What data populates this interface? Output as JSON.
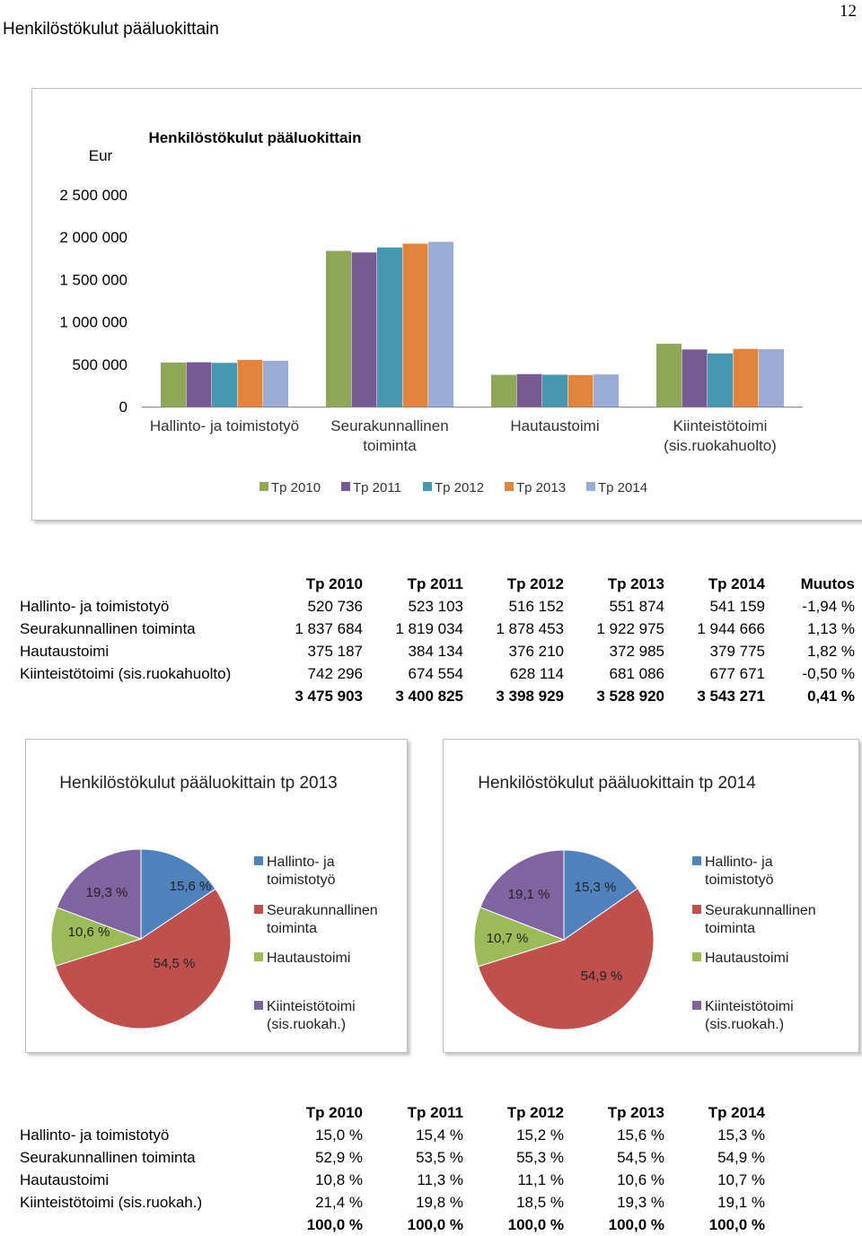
{
  "page": {
    "title": "Henkilöstökulut pääluokittain",
    "number": "12"
  },
  "chart_data": [
    {
      "type": "bar",
      "title": "Henkilöstökulut pääluokittain",
      "ylabel": "Eur",
      "ylim": [
        0,
        2500000
      ],
      "yticks": [
        "0",
        "500 000",
        "1 000 000",
        "1 500 000",
        "2 000 000",
        "2 500 000"
      ],
      "categories": [
        [
          "Hallinto- ja toimistotyö"
        ],
        [
          "Seurakunnallinen",
          "toiminta"
        ],
        [
          "Hautaustoimi"
        ],
        [
          "Kiinteistötoimi",
          "(sis.ruokahuolto)"
        ]
      ],
      "series": [
        {
          "name": "Tp 2010",
          "color": "#8ea855",
          "values": [
            520736,
            1837684,
            375187,
            742296
          ]
        },
        {
          "name": "Tp 2011",
          "color": "#765a91",
          "values": [
            523103,
            1819034,
            384134,
            674554
          ]
        },
        {
          "name": "Tp 2012",
          "color": "#4499b0",
          "values": [
            516152,
            1878453,
            376210,
            628114
          ]
        },
        {
          "name": "Tp 2013",
          "color": "#e3843e",
          "values": [
            551874,
            1922975,
            372985,
            681086
          ]
        },
        {
          "name": "Tp 2014",
          "color": "#98acd6",
          "values": [
            541159,
            1944666,
            379775,
            677671
          ]
        }
      ],
      "legend_position": "bottom",
      "grid": false
    },
    {
      "type": "pie",
      "title": "Henkilöstökulut pääluokittain tp 2013",
      "labels": [
        [
          "Hallinto- ja",
          "toimistotyö"
        ],
        [
          "Seurakunnallinen",
          "toiminta"
        ],
        [
          "Hautaustoimi"
        ],
        [
          "Kiinteistötoimi",
          "(sis.ruokah.)"
        ]
      ],
      "values": [
        15.6,
        54.5,
        10.6,
        19.3
      ],
      "value_labels": [
        "15,6 %",
        "54,5 %",
        "10,6 %",
        "19,3 %"
      ],
      "colors": [
        "#4f81bd",
        "#c0504d",
        "#9bbb59",
        "#8064a2"
      ],
      "legend_position": "right"
    },
    {
      "type": "pie",
      "title": "Henkilöstökulut pääluokittain tp 2014",
      "labels": [
        [
          "Hallinto- ja",
          "toimistotyö"
        ],
        [
          "Seurakunnallinen",
          "toiminta"
        ],
        [
          "Hautaustoimi"
        ],
        [
          "Kiinteistötoimi",
          "(sis.ruokah.)"
        ]
      ],
      "values": [
        15.3,
        54.9,
        10.7,
        19.1
      ],
      "value_labels": [
        "15,3 %",
        "54,9 %",
        "10,7 %",
        "19,1 %"
      ],
      "colors": [
        "#4f81bd",
        "#c0504d",
        "#9bbb59",
        "#8064a2"
      ],
      "legend_position": "right"
    },
    {
      "type": "table",
      "headers": [
        "",
        "Tp 2010",
        "Tp 2011",
        "Tp 2012",
        "Tp 2013",
        "Tp 2014",
        "Muutos"
      ],
      "rows": [
        [
          "Hallinto- ja toimistotyö",
          "520 736",
          "523 103",
          "516 152",
          "551 874",
          "541 159",
          "-1,94 %"
        ],
        [
          "Seurakunnallinen toiminta",
          "1 837 684",
          "1 819 034",
          "1 878 453",
          "1 922 975",
          "1 944 666",
          "1,13 %"
        ],
        [
          "Hautaustoimi",
          "375 187",
          "384 134",
          "376 210",
          "372 985",
          "379 775",
          "1,82 %"
        ],
        [
          "Kiinteistötoimi (sis.ruokahuolto)",
          "742 296",
          "674 554",
          "628 114",
          "681 086",
          "677 671",
          "-0,50 %"
        ]
      ],
      "total": [
        "",
        "3 475 903",
        "3 400 825",
        "3 398 929",
        "3 528 920",
        "3 543 271",
        "0,41 %"
      ]
    },
    {
      "type": "table",
      "headers": [
        "",
        "Tp 2010",
        "Tp 2011",
        "Tp 2012",
        "Tp 2013",
        "Tp 2014"
      ],
      "rows": [
        [
          "Hallinto- ja toimistotyö",
          "15,0 %",
          "15,4 %",
          "15,2 %",
          "15,6 %",
          "15,3 %"
        ],
        [
          "Seurakunnallinen toiminta",
          "52,9 %",
          "53,5 %",
          "55,3 %",
          "54,5 %",
          "54,9 %"
        ],
        [
          "Hautaustoimi",
          "10,8 %",
          "11,3 %",
          "11,1 %",
          "10,6 %",
          "10,7 %"
        ],
        [
          "Kiinteistötoimi (sis.ruokah.)",
          "21,4 %",
          "19,8 %",
          "18,5 %",
          "19,3 %",
          "19,1 %"
        ]
      ],
      "total": [
        "",
        "100,0 %",
        "100,0 %",
        "100,0 %",
        "100,0 %",
        "100,0 %"
      ]
    }
  ]
}
